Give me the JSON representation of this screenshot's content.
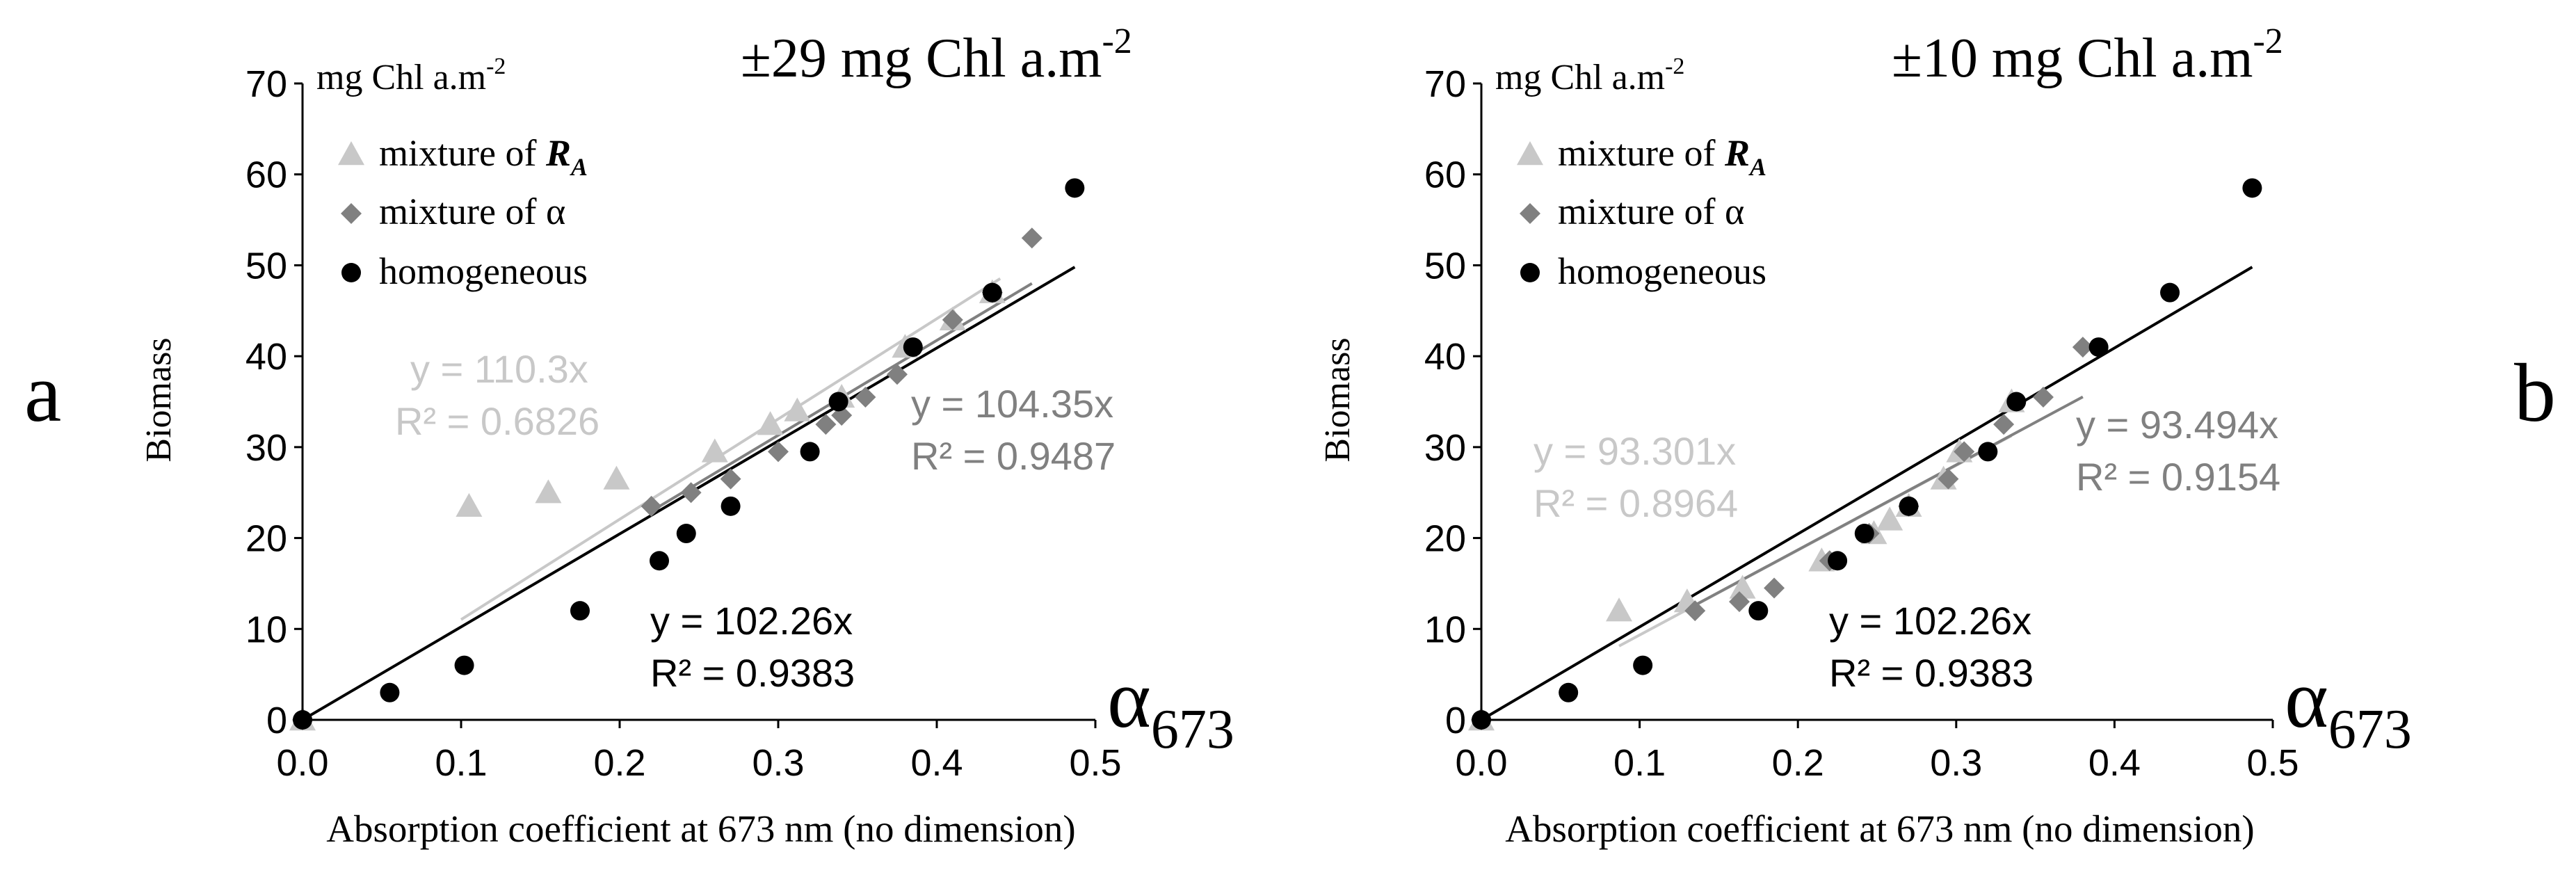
{
  "figure": {
    "panel_letters": [
      "a",
      "b"
    ]
  },
  "colors": {
    "homogeneous": "#000000",
    "mixture_alpha": "#808080",
    "mixture_RA": "#c8c8c8",
    "axis": "#000000"
  },
  "chart_data": [
    {
      "type": "scatter",
      "panel": "a",
      "title": "±29 mg Chl a.m-2",
      "title_main": "±29 mg Chl a.m",
      "title_sup": "-2",
      "unit_label_main": "mg Chl a.m",
      "unit_label_sup": "-2",
      "xlabel": "Absorption coefficient at 673 nm (no dimension)",
      "ylabel": "Biomass",
      "axis_symbol": "α",
      "axis_symbol_sub": "673",
      "xlim": [
        0,
        0.5
      ],
      "ylim": [
        0,
        70
      ],
      "xticks": [
        "0.0",
        "0.1",
        "0.2",
        "0.3",
        "0.4",
        "0.5"
      ],
      "yticks": [
        "0",
        "10",
        "20",
        "30",
        "40",
        "50",
        "60",
        "70"
      ],
      "legend": {
        "position": "top-left",
        "entries": [
          {
            "label_prefix": "mixture of ",
            "label_symbol": "R",
            "label_sub": "A",
            "series": "RA"
          },
          {
            "label_prefix": "mixture of α",
            "series": "alpha"
          },
          {
            "label_prefix": "homogeneous",
            "series": "homog"
          }
        ]
      },
      "series": [
        {
          "name": "mixture of RA",
          "key": "RA",
          "marker": "triangle",
          "x": [
            0.0,
            0.105,
            0.155,
            0.198,
            0.26,
            0.295,
            0.312,
            0.34,
            0.38,
            0.41,
            0.435
          ],
          "y": [
            0,
            23.5,
            25,
            26.5,
            29.5,
            32.5,
            34,
            35.5,
            41,
            44,
            47
          ],
          "fit": {
            "slope": 110.3,
            "x_range": [
              0.1,
              0.44
            ],
            "equation": "y = 110.3x",
            "r2": "R² = 0.6826"
          }
        },
        {
          "name": "mixture of α",
          "key": "alpha",
          "marker": "diamond",
          "x": [
            0.0,
            0.22,
            0.245,
            0.27,
            0.3,
            0.33,
            0.34,
            0.355,
            0.375,
            0.41,
            0.435,
            0.46
          ],
          "y": [
            0,
            23.5,
            25,
            26.5,
            29.5,
            32.5,
            33.5,
            35.5,
            38,
            44,
            47,
            53
          ],
          "fit": {
            "slope": 104.35,
            "x_range": [
              0.22,
              0.46
            ],
            "equation": "y = 104.35x",
            "r2": "R² = 0.9487"
          }
        },
        {
          "name": "homogeneous",
          "key": "homog",
          "marker": "circle",
          "x": [
            0.0,
            0.055,
            0.102,
            0.175,
            0.225,
            0.242,
            0.27,
            0.32,
            0.338,
            0.385,
            0.435,
            0.487
          ],
          "y": [
            0,
            3,
            6,
            12,
            17.5,
            20.5,
            23.5,
            29.5,
            35,
            41,
            47,
            58.5
          ],
          "fit": {
            "slope": 102.26,
            "x_range": [
              0,
              0.487
            ],
            "equation": "y = 102.26x",
            "r2": "R² = 0.9383"
          }
        }
      ]
    },
    {
      "type": "scatter",
      "panel": "b",
      "title": "±10 mg Chl a.m-2",
      "title_main": "±10 mg Chl a.m",
      "title_sup": "-2",
      "unit_label_main": "mg Chl a.m",
      "unit_label_sup": "-2",
      "xlabel": "Absorption coefficient at 673 nm (no dimension)",
      "ylabel": "Biomass",
      "axis_symbol": "α",
      "axis_symbol_sub": "673",
      "xlim": [
        0,
        0.5
      ],
      "ylim": [
        0,
        70
      ],
      "xticks": [
        "0.0",
        "0.1",
        "0.2",
        "0.3",
        "0.4",
        "0.5"
      ],
      "yticks": [
        "0",
        "10",
        "20",
        "30",
        "40",
        "50",
        "60",
        "70"
      ],
      "legend": {
        "position": "top-left",
        "entries": [
          {
            "label_prefix": "mixture of ",
            "label_symbol": "R",
            "label_sub": "A",
            "series": "RA"
          },
          {
            "label_prefix": "mixture of α",
            "series": "alpha"
          },
          {
            "label_prefix": "homogeneous",
            "series": "homog"
          }
        ]
      },
      "series": [
        {
          "name": "mixture of RA",
          "key": "RA",
          "marker": "triangle",
          "x": [
            0.0,
            0.087,
            0.13,
            0.165,
            0.215,
            0.248,
            0.258,
            0.27,
            0.292,
            0.302,
            0.335
          ],
          "y": [
            0,
            12,
            13,
            14.5,
            17.5,
            20.5,
            22,
            23.5,
            26.5,
            29.5,
            35
          ],
          "fit": {
            "slope": 93.301,
            "x_range": [
              0.087,
              0.335
            ],
            "equation": "y = 93.301x",
            "r2": "R² = 0.8964"
          }
        },
        {
          "name": "mixture of α",
          "key": "alpha",
          "marker": "diamond",
          "x": [
            0.0,
            0.135,
            0.163,
            0.185,
            0.22,
            0.245,
            0.27,
            0.295,
            0.305,
            0.33,
            0.355,
            0.38
          ],
          "y": [
            0,
            12,
            13,
            14.5,
            17.5,
            20.5,
            23.5,
            26.5,
            29.5,
            32.5,
            35.5,
            41
          ],
          "fit": {
            "slope": 93.494,
            "x_range": [
              0.135,
              0.38
            ],
            "equation": "y = 93.494x",
            "r2": "R² = 0.9154"
          }
        },
        {
          "name": "homogeneous",
          "key": "homog",
          "marker": "circle",
          "x": [
            0.0,
            0.055,
            0.102,
            0.175,
            0.225,
            0.242,
            0.27,
            0.32,
            0.338,
            0.39,
            0.435,
            0.487
          ],
          "y": [
            0,
            3,
            6,
            12,
            17.5,
            20.5,
            23.5,
            29.5,
            35,
            41,
            47,
            58.5
          ],
          "fit": {
            "slope": 102.26,
            "x_range": [
              0,
              0.487
            ],
            "equation": "y = 102.26x",
            "r2": "R² = 0.9383"
          }
        }
      ]
    }
  ]
}
